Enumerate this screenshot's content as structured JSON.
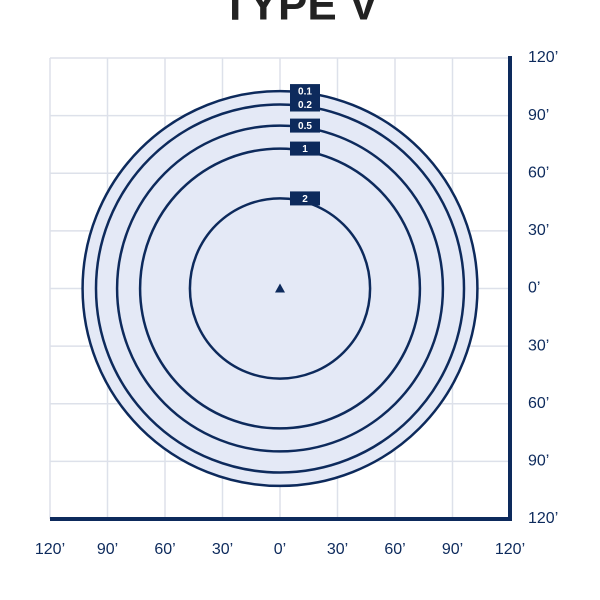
{
  "chart_data": {
    "type": "contour",
    "title": "TYPE V",
    "color": "#0d2a5c",
    "fill": "#e4e9f6",
    "grid": true,
    "xlim": [
      -120,
      120
    ],
    "ylim": [
      -120,
      120
    ],
    "xticks": [
      {
        "value": -120,
        "label": "120’"
      },
      {
        "value": -90,
        "label": "90’"
      },
      {
        "value": -60,
        "label": "60’"
      },
      {
        "value": -30,
        "label": "30’"
      },
      {
        "value": 0,
        "label": "0’"
      },
      {
        "value": 30,
        "label": "30’"
      },
      {
        "value": 60,
        "label": "60’"
      },
      {
        "value": 90,
        "label": "90’"
      },
      {
        "value": 120,
        "label": "120’"
      }
    ],
    "yticks": [
      {
        "value": 120,
        "label": "120’"
      },
      {
        "value": 90,
        "label": "90’"
      },
      {
        "value": 60,
        "label": "60’"
      },
      {
        "value": 30,
        "label": "30’"
      },
      {
        "value": 0,
        "label": "0’"
      },
      {
        "value": -30,
        "label": "30’"
      },
      {
        "value": -60,
        "label": "60’"
      },
      {
        "value": -90,
        "label": "90’"
      },
      {
        "value": -120,
        "label": "120’"
      }
    ],
    "contours": [
      {
        "label": "0.1",
        "radius": 103
      },
      {
        "label": "0.2",
        "radius": 96
      },
      {
        "label": "0.5",
        "radius": 85
      },
      {
        "label": "1",
        "radius": 73
      },
      {
        "label": "2",
        "radius": 47
      }
    ]
  }
}
